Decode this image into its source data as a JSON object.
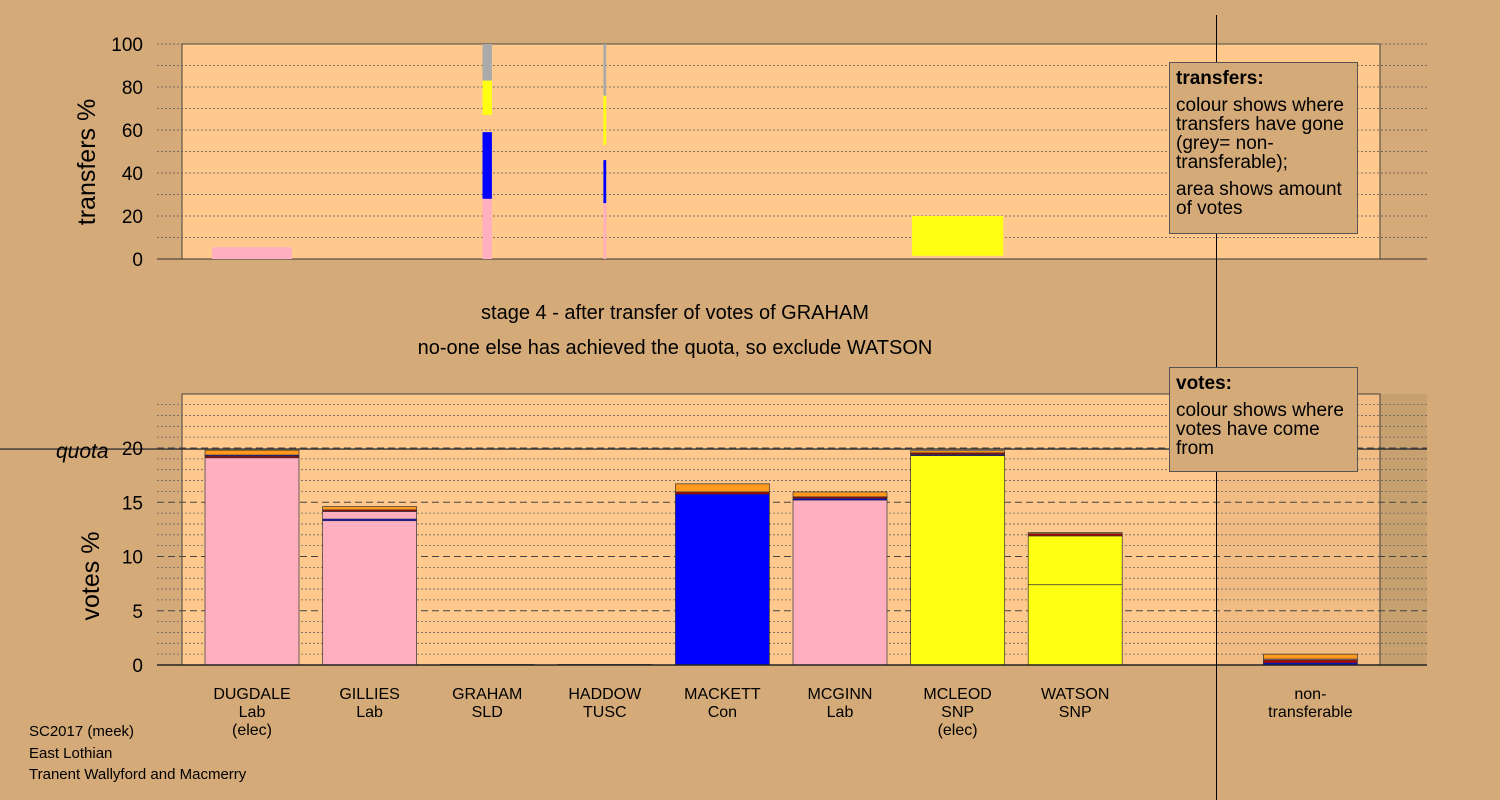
{
  "stage_title": "stage 4 - after transfer of votes of GRAHAM",
  "stage_subtitle": "no-one else has achieved the quota, so exclude WATSON",
  "legend_transfers": {
    "title": "transfers:",
    "text1": "colour shows where transfers have gone (grey= non-transferable);",
    "text2": "area shows amount of votes"
  },
  "legend_votes": {
    "title": "votes:",
    "text1": "colour shows where votes have come from"
  },
  "footer": {
    "line1": "SC2017 (meek)",
    "line2": "East Lothian",
    "line3": "Tranent Wallyford and Macmerry"
  },
  "colors": {
    "background": "#d4aa78",
    "plot_bg": "#ffc88c",
    "Lab": "#ffb0c0",
    "Con": "#0000ff",
    "SNP": "#ffff14",
    "SLD": "#ff9a1e",
    "TUSC": "#b40000",
    "nontransferable": "#aaaaaa"
  },
  "chart_data": [
    {
      "type": "bar",
      "name": "transfers",
      "ylabel": "transfers %",
      "ylim": [
        0,
        100
      ],
      "yticks": [
        0,
        20,
        40,
        60,
        80,
        100
      ],
      "bars": [
        {
          "candidate": "DUGDALE",
          "width": 0.85,
          "segments": [
            {
              "color": "Lab",
              "from": 0,
              "to": 5.5
            }
          ]
        },
        {
          "candidate": "GRAHAM",
          "width": 0.1,
          "segments": [
            {
              "color": "Lab",
              "from": 0,
              "to": 28
            },
            {
              "color": "Con",
              "from": 28,
              "to": 59
            },
            {
              "color": "SNP",
              "from": 67,
              "to": 83
            },
            {
              "color": "nontransferable",
              "from": 83,
              "to": 100
            }
          ]
        },
        {
          "candidate": "HADDOW",
          "width": 0.03,
          "segments": [
            {
              "color": "Lab",
              "from": 0,
              "to": 26
            },
            {
              "color": "Con",
              "from": 26,
              "to": 46
            },
            {
              "color": "SNP",
              "from": 53,
              "to": 76
            },
            {
              "color": "nontransferable",
              "from": 76,
              "to": 100
            }
          ]
        },
        {
          "candidate": "MCLEOD",
          "width": 0.97,
          "segments": [
            {
              "color": "SNP",
              "from": 1.5,
              "to": 20
            }
          ]
        }
      ]
    },
    {
      "type": "bar",
      "name": "votes",
      "ylabel": "votes %",
      "quota_label": "quota",
      "quota": 19.9,
      "ylim": [
        0,
        25
      ],
      "yticks": [
        0,
        5,
        10,
        15,
        20
      ],
      "categories": [
        "DUGDALE",
        "GILLIES",
        "GRAHAM",
        "HADDOW",
        "MACKETT",
        "MCGINN",
        "MCLEOD",
        "WATSON",
        "",
        "non-"
      ],
      "category_lines2": [
        "Lab",
        "Lab",
        "SLD",
        "TUSC",
        "Con",
        "Lab",
        "SNP",
        "SNP",
        "",
        "transferable"
      ],
      "category_lines3": [
        "(elec)",
        "",
        "",
        "",
        "",
        "",
        "(elec)",
        "",
        "",
        ""
      ],
      "bars": [
        {
          "candidate": "DUGDALE",
          "segments": [
            {
              "color": "Lab",
              "value": 19.1
            },
            {
              "color": "TUSC",
              "value": 0.15
            },
            {
              "color": "Con",
              "value": 0.1
            },
            {
              "color": "SLD",
              "value": 0.45
            }
          ]
        },
        {
          "candidate": "GILLIES",
          "segments": [
            {
              "color": "Lab",
              "value": 13.3
            },
            {
              "color": "Con",
              "value": 0.15
            },
            {
              "color": "Lab",
              "value": 0.7
            },
            {
              "color": "TUSC",
              "value": 0.15
            },
            {
              "color": "SLD",
              "value": 0.3
            }
          ]
        },
        {
          "candidate": "GRAHAM",
          "segments": [
            {
              "color": "SLD",
              "value": 0.05
            }
          ]
        },
        {
          "candidate": "HADDOW",
          "segments": [
            {
              "color": "TUSC",
              "value": 0.05
            }
          ]
        },
        {
          "candidate": "MACKETT",
          "segments": [
            {
              "color": "Con",
              "value": 15.75
            },
            {
              "color": "TUSC",
              "value": 0.2
            },
            {
              "color": "SLD",
              "value": 0.75
            }
          ]
        },
        {
          "candidate": "MCGINN",
          "segments": [
            {
              "color": "Lab",
              "value": 15.2
            },
            {
              "color": "Con",
              "value": 0.15
            },
            {
              "color": "TUSC",
              "value": 0.15
            },
            {
              "color": "SLD",
              "value": 0.45
            }
          ]
        },
        {
          "candidate": "MCLEOD",
          "segments": [
            {
              "color": "SNP",
              "value": 19.3
            },
            {
              "color": "Con",
              "value": 0.1
            },
            {
              "color": "TUSC",
              "value": 0.15
            },
            {
              "color": "SLD",
              "value": 0.2
            }
          ]
        },
        {
          "candidate": "WATSON",
          "segments": [
            {
              "color": "SNP",
              "value": 7.4
            },
            {
              "color": "SNP",
              "value": 4.5
            },
            {
              "color": "TUSC",
              "value": 0.2
            },
            {
              "color": "SLD",
              "value": 0.1
            }
          ]
        },
        {
          "candidate": "non-",
          "segments": [
            {
              "color": "Con",
              "value": 0.2
            },
            {
              "color": "TUSC",
              "value": 0.25
            },
            {
              "color": "Lab",
              "value": 0.1
            },
            {
              "color": "SLD",
              "value": 0.45
            }
          ]
        }
      ]
    }
  ]
}
